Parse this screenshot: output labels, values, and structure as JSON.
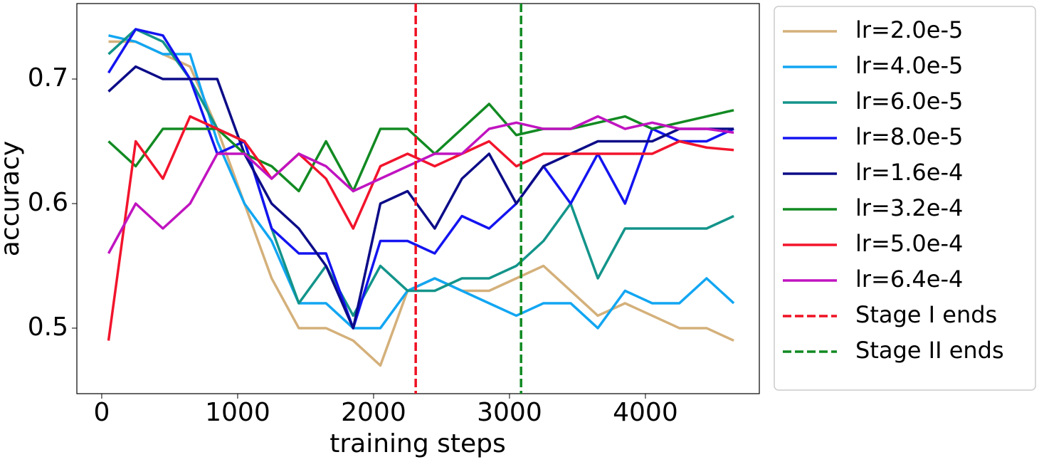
{
  "chart_data": {
    "type": "line",
    "xlabel": "training steps",
    "ylabel": "accuracy",
    "xlim": [
      -183,
      4838
    ],
    "ylim": [
      0.4474,
      0.7606
    ],
    "xticks": [
      0,
      1000,
      2000,
      3000,
      4000
    ],
    "yticks": [
      0.5,
      0.6,
      0.7
    ],
    "x": [
      50,
      250,
      450,
      650,
      850,
      1050,
      1250,
      1450,
      1650,
      1850,
      2050,
      2250,
      2450,
      2650,
      2850,
      3050,
      3250,
      3450,
      3650,
      3850,
      4050,
      4250,
      4450,
      4650
    ],
    "series": [
      {
        "name": "lr=2.0e-5",
        "color": "#d4b07a",
        "values": [
          0.73,
          0.73,
          0.72,
          0.71,
          0.66,
          0.6,
          0.54,
          0.5,
          0.5,
          0.49,
          0.47,
          0.53,
          0.54,
          0.53,
          0.53,
          0.54,
          0.55,
          0.53,
          0.51,
          0.52,
          0.51,
          0.5,
          0.5,
          0.49
        ]
      },
      {
        "name": "lr=4.0e-5",
        "color": "#12a6f2",
        "values": [
          0.735,
          0.73,
          0.72,
          0.72,
          0.65,
          0.6,
          0.57,
          0.52,
          0.52,
          0.5,
          0.5,
          0.53,
          0.54,
          0.53,
          0.52,
          0.51,
          0.52,
          0.52,
          0.5,
          0.53,
          0.52,
          0.52,
          0.54,
          0.52
        ]
      },
      {
        "name": "lr=6.0e-5",
        "color": "#13948a",
        "values": [
          0.72,
          0.74,
          0.73,
          0.7,
          0.66,
          0.65,
          0.58,
          0.52,
          0.55,
          0.51,
          0.55,
          0.53,
          0.53,
          0.54,
          0.54,
          0.55,
          0.57,
          0.6,
          0.54,
          0.58,
          0.58,
          0.58,
          0.58,
          0.59
        ]
      },
      {
        "name": "lr=8.0e-5",
        "color": "#1414f0",
        "values": [
          0.705,
          0.74,
          0.735,
          0.7,
          0.64,
          0.65,
          0.58,
          0.56,
          0.56,
          0.5,
          0.57,
          0.57,
          0.56,
          0.59,
          0.58,
          0.6,
          0.63,
          0.6,
          0.64,
          0.6,
          0.66,
          0.65,
          0.65,
          0.66
        ]
      },
      {
        "name": "lr=1.6e-4",
        "color": "#0c0c88",
        "values": [
          0.69,
          0.71,
          0.7,
          0.7,
          0.7,
          0.64,
          0.6,
          0.58,
          0.55,
          0.5,
          0.6,
          0.61,
          0.58,
          0.62,
          0.64,
          0.6,
          0.63,
          0.64,
          0.65,
          0.65,
          0.65,
          0.66,
          0.66,
          0.66
        ]
      },
      {
        "name": "lr=3.2e-4",
        "color": "#128a22",
        "values": [
          0.65,
          0.63,
          0.66,
          0.66,
          0.66,
          0.64,
          0.63,
          0.61,
          0.65,
          0.61,
          0.66,
          0.66,
          0.64,
          0.66,
          0.68,
          0.655,
          0.66,
          0.66,
          0.665,
          0.67,
          0.66,
          0.665,
          0.67,
          0.675
        ]
      },
      {
        "name": "lr=5.0e-4",
        "color": "#f2142c",
        "values": [
          0.49,
          0.65,
          0.62,
          0.67,
          0.66,
          0.65,
          0.62,
          0.64,
          0.62,
          0.58,
          0.63,
          0.64,
          0.63,
          0.64,
          0.65,
          0.63,
          0.64,
          0.64,
          0.64,
          0.64,
          0.64,
          0.65,
          0.645,
          0.643
        ]
      },
      {
        "name": "lr=6.4e-4",
        "color": "#c014c0",
        "values": [
          0.56,
          0.6,
          0.58,
          0.6,
          0.64,
          0.64,
          0.62,
          0.64,
          0.63,
          0.61,
          0.62,
          0.63,
          0.64,
          0.64,
          0.66,
          0.665,
          0.66,
          0.66,
          0.67,
          0.66,
          0.665,
          0.66,
          0.66,
          0.657
        ]
      }
    ],
    "vlines": [
      {
        "name": "Stage I ends",
        "x": 2310,
        "color": "#ee1122"
      },
      {
        "name": "Stage II ends",
        "x": 3085,
        "color": "#118a22"
      }
    ]
  }
}
